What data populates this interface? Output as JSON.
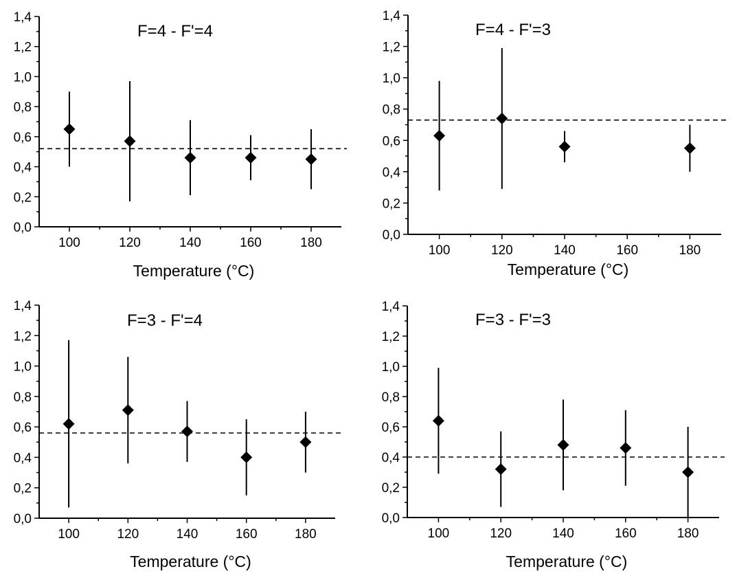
{
  "chart_data": [
    {
      "type": "scatter",
      "title": "F=4 - F'=4",
      "xlabel": "Temperature (°C)",
      "ylabel": "",
      "xlim": [
        90,
        190
      ],
      "ylim": [
        0,
        1.4
      ],
      "xticks": [
        100,
        120,
        140,
        160,
        180
      ],
      "yticks": [
        0.0,
        0.2,
        0.4,
        0.6,
        0.8,
        1.0,
        1.2,
        1.4
      ],
      "decimal_separator": ",",
      "grid": false,
      "marker": "diamond",
      "points": [
        {
          "x": 100,
          "y": 0.65,
          "ymin": 0.4,
          "ymax": 0.9
        },
        {
          "x": 120,
          "y": 0.57,
          "ymin": 0.17,
          "ymax": 0.97
        },
        {
          "x": 140,
          "y": 0.46,
          "ymin": 0.21,
          "ymax": 0.71
        },
        {
          "x": 160,
          "y": 0.46,
          "ymin": 0.31,
          "ymax": 0.61
        },
        {
          "x": 180,
          "y": 0.45,
          "ymin": 0.25,
          "ymax": 0.65
        }
      ],
      "reference_line": 0.52
    },
    {
      "type": "scatter",
      "title": "F=4 - F'=3",
      "xlabel": "Temperature (°C)",
      "ylabel": "",
      "xlim": [
        90,
        190
      ],
      "ylim": [
        0,
        1.4
      ],
      "xticks": [
        100,
        120,
        140,
        160,
        180
      ],
      "yticks": [
        0.0,
        0.2,
        0.4,
        0.6,
        0.8,
        1.0,
        1.2,
        1.4
      ],
      "decimal_separator": ",",
      "grid": false,
      "marker": "diamond",
      "points": [
        {
          "x": 100,
          "y": 0.63,
          "ymin": 0.28,
          "ymax": 0.98
        },
        {
          "x": 120,
          "y": 0.74,
          "ymin": 0.29,
          "ymax": 1.19
        },
        {
          "x": 140,
          "y": 0.56,
          "ymin": 0.46,
          "ymax": 0.66
        },
        {
          "x": 180,
          "y": 0.55,
          "ymin": 0.4,
          "ymax": 0.7
        }
      ],
      "reference_line": 0.73
    },
    {
      "type": "scatter",
      "title": "F=3 - F'=4",
      "xlabel": "Temperature (°C)",
      "ylabel": "",
      "xlim": [
        90,
        190
      ],
      "ylim": [
        0,
        1.4
      ],
      "xticks": [
        100,
        120,
        140,
        160,
        180
      ],
      "yticks": [
        0.0,
        0.2,
        0.4,
        0.6,
        0.8,
        1.0,
        1.2,
        1.4
      ],
      "decimal_separator": ",",
      "grid": false,
      "marker": "diamond",
      "points": [
        {
          "x": 100,
          "y": 0.62,
          "ymin": 0.07,
          "ymax": 1.17
        },
        {
          "x": 120,
          "y": 0.71,
          "ymin": 0.36,
          "ymax": 1.06
        },
        {
          "x": 140,
          "y": 0.57,
          "ymin": 0.37,
          "ymax": 0.77
        },
        {
          "x": 160,
          "y": 0.4,
          "ymin": 0.15,
          "ymax": 0.65
        },
        {
          "x": 180,
          "y": 0.5,
          "ymin": 0.3,
          "ymax": 0.7
        }
      ],
      "reference_line": 0.56
    },
    {
      "type": "scatter",
      "title": "F=3 - F'=3",
      "xlabel": "Temperature (°C)",
      "ylabel": "",
      "xlim": [
        90,
        190
      ],
      "ylim": [
        0,
        1.4
      ],
      "xticks": [
        100,
        120,
        140,
        160,
        180
      ],
      "yticks": [
        0.0,
        0.2,
        0.4,
        0.6,
        0.8,
        1.0,
        1.2,
        1.4
      ],
      "decimal_separator": ",",
      "grid": false,
      "marker": "diamond",
      "points": [
        {
          "x": 100,
          "y": 0.64,
          "ymin": 0.29,
          "ymax": 0.99
        },
        {
          "x": 120,
          "y": 0.32,
          "ymin": 0.07,
          "ymax": 0.57
        },
        {
          "x": 140,
          "y": 0.48,
          "ymin": 0.18,
          "ymax": 0.78
        },
        {
          "x": 160,
          "y": 0.46,
          "ymin": 0.21,
          "ymax": 0.71
        },
        {
          "x": 180,
          "y": 0.3,
          "ymin": 0.0,
          "ymax": 0.6
        }
      ],
      "reference_line": 0.4
    }
  ]
}
